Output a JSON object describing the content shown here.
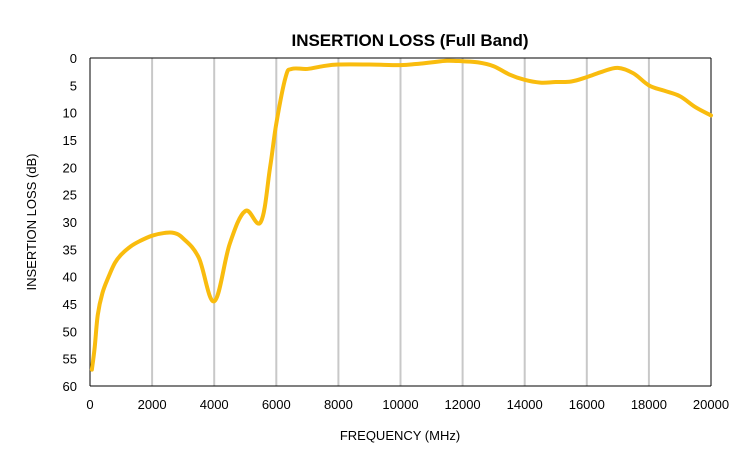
{
  "chart_data": {
    "type": "line",
    "title": "INSERTION LOSS (Full Band)",
    "xlabel": "FREQUENCY (MHz)",
    "ylabel": "INSERTION LOSS (dB)",
    "xlim": [
      0,
      20000
    ],
    "ylim": [
      0,
      60
    ],
    "y_inverted": true,
    "x_ticks": [
      0,
      2000,
      4000,
      6000,
      8000,
      10000,
      12000,
      14000,
      16000,
      18000,
      20000
    ],
    "y_ticks": [
      0,
      5,
      10,
      15,
      20,
      25,
      30,
      35,
      40,
      45,
      50,
      55,
      60
    ],
    "grid": {
      "vertical": true,
      "horizontal": false
    },
    "legend": "none",
    "colors": {
      "line": "#F9BC0E",
      "grid": "#c8c8c8",
      "axis": "#000000"
    },
    "series": [
      {
        "x": [
          60,
          150,
          250,
          400,
          600,
          800,
          1000,
          1300,
          1600,
          2000,
          2400,
          2700,
          3000,
          3500,
          4000,
          4500,
          5000,
          5500,
          5800,
          6000,
          6300,
          6500,
          7000,
          7500,
          8000,
          9000,
          10000,
          10500,
          11000,
          11500,
          12000,
          12500,
          13000,
          13500,
          14000,
          14500,
          15000,
          15500,
          16000,
          16500,
          17000,
          17500,
          18000,
          18500,
          19000,
          19500,
          20000
        ],
        "y": [
          57,
          53,
          47,
          43,
          40,
          37.5,
          36,
          34.5,
          33.5,
          32.5,
          32,
          32,
          33,
          36.5,
          44.5,
          34,
          28,
          30,
          20,
          12,
          3.5,
          2,
          2,
          1.5,
          1.2,
          1.2,
          1.3,
          1.1,
          0.8,
          0.5,
          0.6,
          0.8,
          1.5,
          3,
          4,
          4.5,
          4.4,
          4.3,
          3.5,
          2.5,
          1.8,
          2.8,
          5,
          6,
          7,
          9,
          10.5
        ]
      }
    ]
  }
}
